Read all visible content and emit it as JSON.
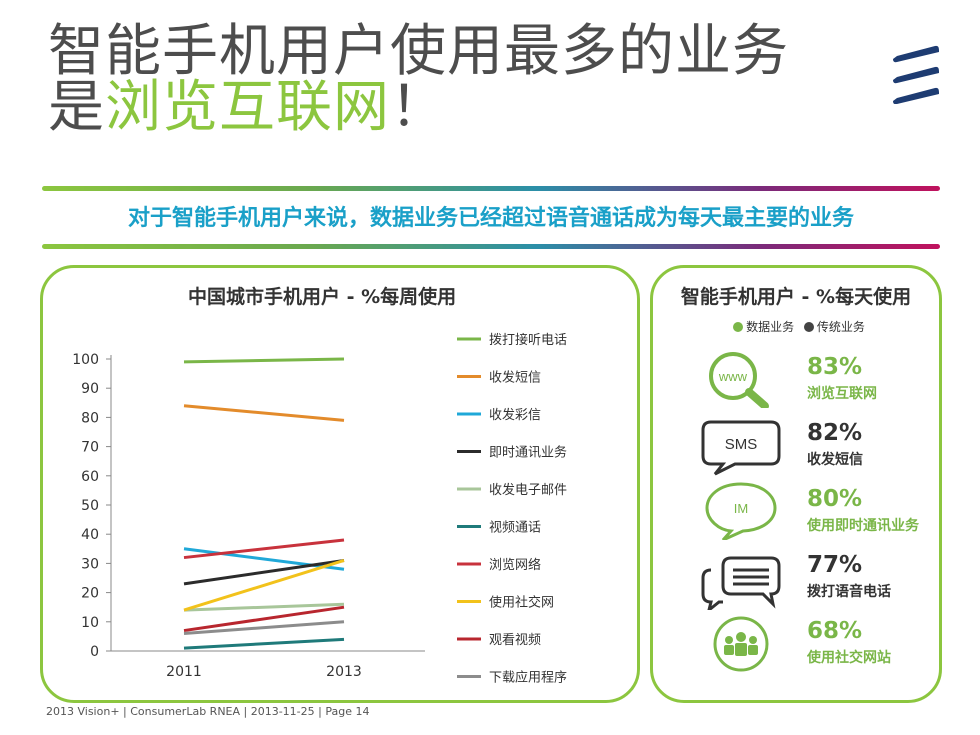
{
  "title": {
    "line1": "智能手机用户使用最多的业务",
    "line2_prefix": "是",
    "line2_highlight": "浏览互联网",
    "line2_suffix": "！"
  },
  "subtitle": "对于智能手机用户来说，数据业务已经超过语音通话成为每天最主要的业务",
  "left_panel": {
    "title": "中国城市手机用户 - %每周使用"
  },
  "chart_data": {
    "type": "line",
    "title": "中国城市手机用户 - %每周使用",
    "xlabel": "",
    "ylabel": "",
    "categories": [
      "2011",
      "2013"
    ],
    "ylim": [
      0,
      100
    ],
    "yticks": [
      0,
      10,
      20,
      30,
      40,
      50,
      60,
      70,
      80,
      90,
      100
    ],
    "series": [
      {
        "name": "拨打接听电话",
        "color": "#7ab648",
        "values": [
          99,
          100
        ]
      },
      {
        "name": "收发短信",
        "color": "#e38b2b",
        "values": [
          84,
          79
        ]
      },
      {
        "name": "收发彩信",
        "color": "#1fa8d8",
        "values": [
          35,
          28
        ]
      },
      {
        "name": "即时通讯业务",
        "color": "#2b2b2b",
        "values": [
          23,
          31
        ]
      },
      {
        "name": "收发电子邮件",
        "color": "#a8c69a",
        "values": [
          14,
          16
        ]
      },
      {
        "name": "视频通话",
        "color": "#1f7a7a",
        "values": [
          1,
          4
        ]
      },
      {
        "name": "浏览网络",
        "color": "#c8323c",
        "values": [
          32,
          38
        ]
      },
      {
        "name": "使用社交网",
        "color": "#f2c21b",
        "values": [
          14,
          31
        ]
      },
      {
        "name": "观看视频",
        "color": "#b8262e",
        "values": [
          7,
          15
        ]
      },
      {
        "name": "下载应用程序",
        "color": "#8c8c8c",
        "values": [
          6,
          10
        ]
      }
    ]
  },
  "right_panel": {
    "title": "智能手机用户 - %每天使用",
    "legend": [
      {
        "label": "数据业务",
        "color": "#7ab648"
      },
      {
        "label": "传统业务",
        "color": "#444444"
      }
    ],
    "items": [
      {
        "pct": "83%",
        "label": "浏览互联网",
        "color": "#7ab648",
        "icon": "www-magnifier-icon",
        "icon_text": "www"
      },
      {
        "pct": "82%",
        "label": "收发短信",
        "color": "#333333",
        "icon": "sms-bubble-icon",
        "icon_text": "SMS"
      },
      {
        "pct": "80%",
        "label": "使用即时通讯业务",
        "color": "#7ab648",
        "icon": "im-bubble-icon",
        "icon_text": "IM"
      },
      {
        "pct": "77%",
        "label": "拨打语音电话",
        "color": "#333333",
        "icon": "chat-bubbles-icon",
        "icon_text": ""
      },
      {
        "pct": "68%",
        "label": "使用社交网站",
        "color": "#7ab648",
        "icon": "social-group-icon",
        "icon_text": ""
      }
    ]
  },
  "footer": "2013 Vision+  |  ConsumerLab RNEA  |  2013-11-25  |  Page 14"
}
